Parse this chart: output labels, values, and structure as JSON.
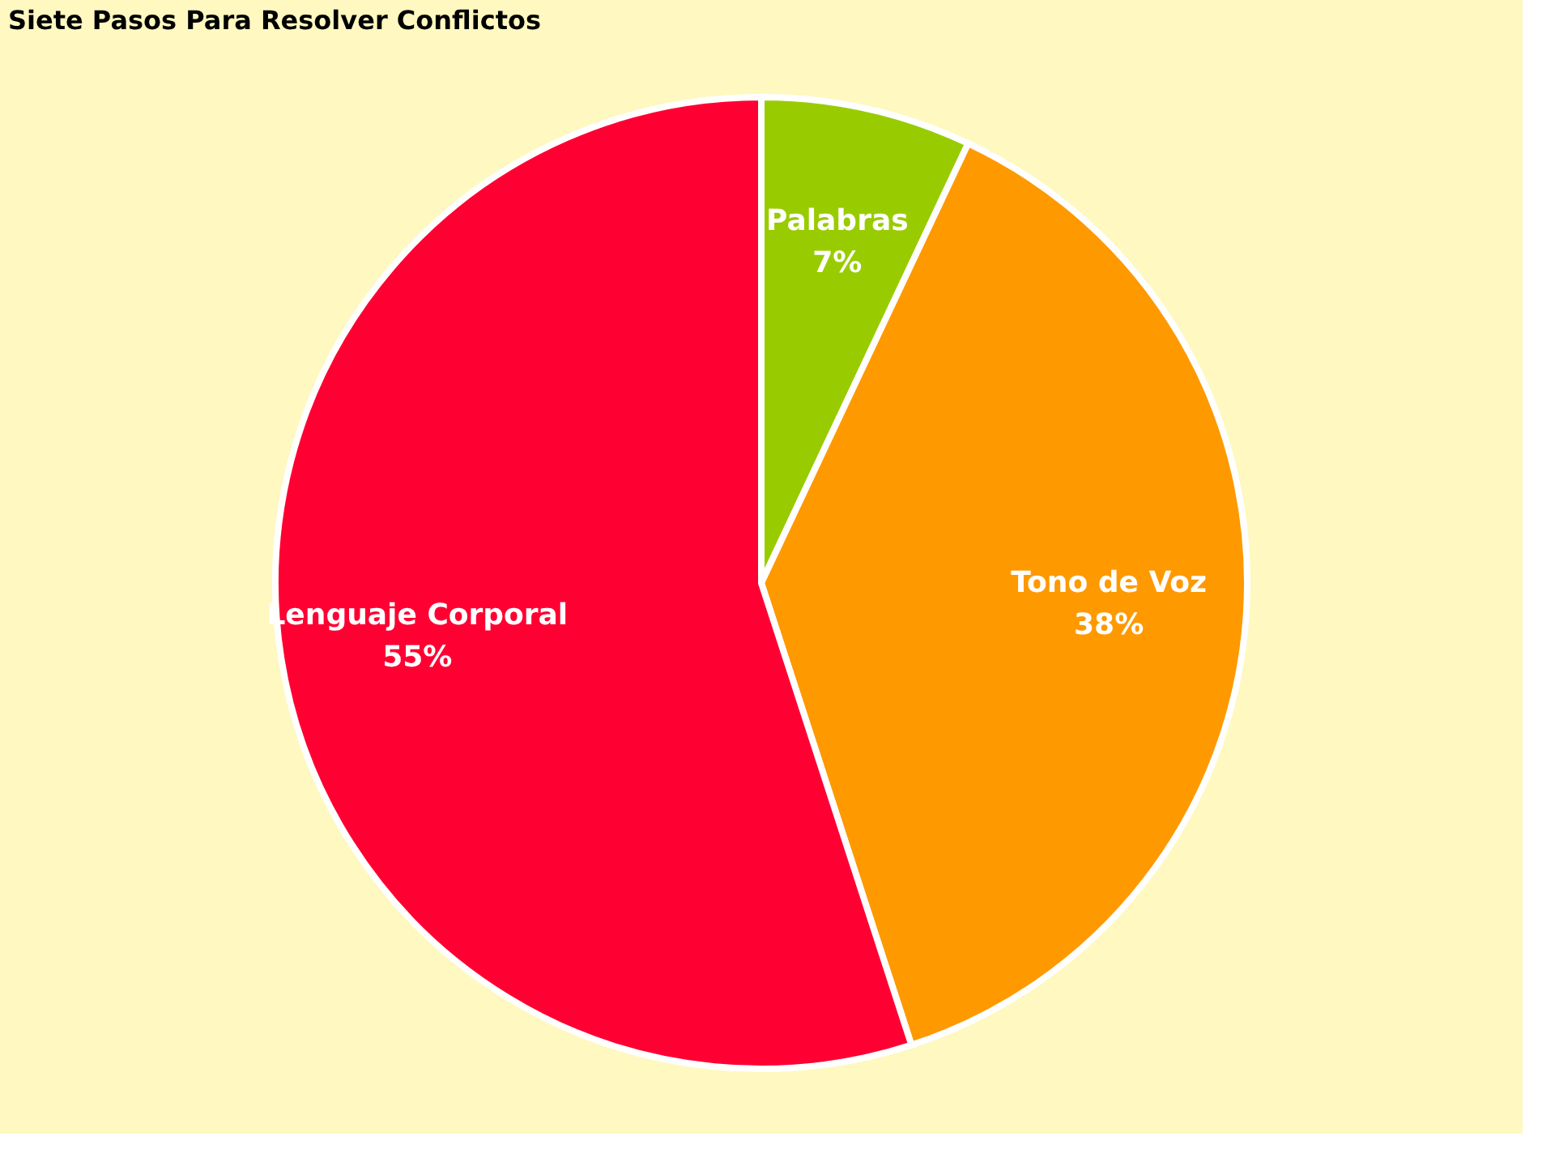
{
  "chart_data": {
    "type": "pie",
    "title": "Siete Pasos Para Resolver Conflictos",
    "categories": [
      "Palabras",
      "Tono de Voz",
      "Lenguaje Corporal"
    ],
    "values": [
      7,
      38,
      55
    ],
    "colors": [
      "#99cc00",
      "#ff9900",
      "#ff0033"
    ],
    "value_labels": [
      "7%",
      "38%",
      "55%"
    ],
    "legend": false
  }
}
